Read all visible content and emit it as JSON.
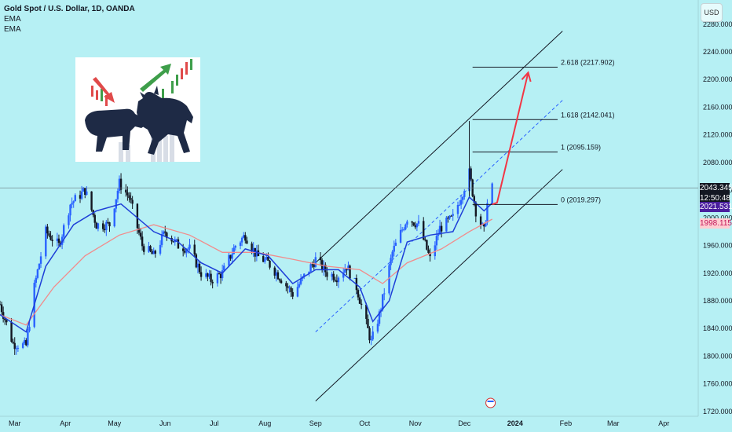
{
  "legend": {
    "title": "Gold Spot / U.S. Dollar, 1D, OANDA",
    "ind1": "EMA",
    "ind2": "EMA"
  },
  "currency_button": "USD",
  "badges": {
    "price": "2043.345",
    "countdown": "12:50:48",
    "ema_fast": "2021.531",
    "ema_slow": "1998.115"
  },
  "colors": {
    "background": "#b6f0f4",
    "up_candle": "#2962ff",
    "down_candle": "#131722",
    "ema_fast": "#1e3fd8",
    "ema_slow": "#f28b8b",
    "arrow": "#f23645",
    "price_badge": "#131722",
    "ema_fast_badge": "#4a1e9e",
    "ema_slow_badge": "#ffcdd2"
  },
  "chart_data": {
    "type": "candlestick",
    "instrument": "XAUUSD",
    "interval": "1D",
    "y_ticks": [
      1720,
      1760,
      1800,
      1840,
      1880,
      1920,
      1960,
      2000,
      2040,
      2080,
      2120,
      2160,
      2200,
      2240,
      2280
    ],
    "y_tick_labels": [
      "1720.000",
      "1760.000",
      "1800.000",
      "1840.000",
      "1880.000",
      "1920.000",
      "1960.000",
      "2000.000",
      "2040.000",
      "2080.000",
      "2120.000",
      "2160.000",
      "2200.000",
      "2240.000",
      "2280.000"
    ],
    "ylim": [
      1713,
      2315
    ],
    "x_range": [
      "2023-02-20",
      "2024-04-22"
    ],
    "x_ticks": [
      {
        "date": "2023-03-01",
        "label": "Mar"
      },
      {
        "date": "2023-04-01",
        "label": "Apr"
      },
      {
        "date": "2023-05-01",
        "label": "May"
      },
      {
        "date": "2023-06-01",
        "label": "Jun"
      },
      {
        "date": "2023-07-01",
        "label": "Jul"
      },
      {
        "date": "2023-08-01",
        "label": "Aug"
      },
      {
        "date": "2023-09-01",
        "label": "Sep"
      },
      {
        "date": "2023-10-01",
        "label": "Oct"
      },
      {
        "date": "2023-11-01",
        "label": "Nov"
      },
      {
        "date": "2023-12-01",
        "label": "Dec"
      },
      {
        "date": "2024-01-01",
        "label": "2024"
      },
      {
        "date": "2024-02-01",
        "label": "Feb"
      },
      {
        "date": "2024-03-01",
        "label": "Mar"
      },
      {
        "date": "2024-04-01",
        "label": "Apr"
      }
    ],
    "close_path": [
      [
        "2023-02-20",
        1875
      ],
      [
        "2023-02-28",
        1818
      ],
      [
        "2023-03-08",
        1815
      ],
      [
        "2023-03-13",
        1900
      ],
      [
        "2023-03-20",
        1980
      ],
      [
        "2023-03-28",
        1960
      ],
      [
        "2023-04-04",
        2020
      ],
      [
        "2023-04-13",
        2040
      ],
      [
        "2023-04-20",
        1990
      ],
      [
        "2023-04-28",
        1990
      ],
      [
        "2023-05-04",
        2050
      ],
      [
        "2023-05-10",
        2030
      ],
      [
        "2023-05-18",
        1960
      ],
      [
        "2023-05-25",
        1945
      ],
      [
        "2023-06-01",
        1980
      ],
      [
        "2023-06-09",
        1960
      ],
      [
        "2023-06-16",
        1955
      ],
      [
        "2023-06-23",
        1920
      ],
      [
        "2023-06-29",
        1910
      ],
      [
        "2023-07-06",
        1920
      ],
      [
        "2023-07-14",
        1960
      ],
      [
        "2023-07-20",
        1975
      ],
      [
        "2023-07-27",
        1945
      ],
      [
        "2023-08-03",
        1935
      ],
      [
        "2023-08-10",
        1915
      ],
      [
        "2023-08-18",
        1890
      ],
      [
        "2023-08-25",
        1915
      ],
      [
        "2023-09-01",
        1940
      ],
      [
        "2023-09-08",
        1920
      ],
      [
        "2023-09-14",
        1915
      ],
      [
        "2023-09-20",
        1930
      ],
      [
        "2023-09-26",
        1900
      ],
      [
        "2023-10-05",
        1820
      ],
      [
        "2023-10-10",
        1860
      ],
      [
        "2023-10-18",
        1950
      ],
      [
        "2023-10-27",
        2000
      ],
      [
        "2023-11-03",
        1990
      ],
      [
        "2023-11-10",
        1940
      ],
      [
        "2023-11-16",
        1985
      ],
      [
        "2023-11-24",
        2000
      ],
      [
        "2023-11-30",
        2038
      ],
      [
        "2023-12-04",
        2065
      ],
      [
        "2023-12-08",
        2010
      ],
      [
        "2023-12-13",
        1980
      ],
      [
        "2023-12-15",
        2020
      ],
      [
        "2023-12-18",
        2043
      ]
    ],
    "ema_fast_path": [
      [
        "2023-02-20",
        1860
      ],
      [
        "2023-03-08",
        1835
      ],
      [
        "2023-03-20",
        1930
      ],
      [
        "2023-04-06",
        1990
      ],
      [
        "2023-04-20",
        2010
      ],
      [
        "2023-05-05",
        2020
      ],
      [
        "2023-05-25",
        1980
      ],
      [
        "2023-06-09",
        1965
      ],
      [
        "2023-06-23",
        1935
      ],
      [
        "2023-07-06",
        1920
      ],
      [
        "2023-07-20",
        1955
      ],
      [
        "2023-08-03",
        1945
      ],
      [
        "2023-08-18",
        1905
      ],
      [
        "2023-09-01",
        1925
      ],
      [
        "2023-09-15",
        1925
      ],
      [
        "2023-09-28",
        1900
      ],
      [
        "2023-10-06",
        1850
      ],
      [
        "2023-10-16",
        1880
      ],
      [
        "2023-10-27",
        1965
      ],
      [
        "2023-11-10",
        1975
      ],
      [
        "2023-11-24",
        1980
      ],
      [
        "2023-12-04",
        2030
      ],
      [
        "2023-12-13",
        2010
      ],
      [
        "2023-12-18",
        2021.531
      ]
    ],
    "ema_slow_path": [
      [
        "2023-02-20",
        1860
      ],
      [
        "2023-03-08",
        1845
      ],
      [
        "2023-03-25",
        1900
      ],
      [
        "2023-04-13",
        1945
      ],
      [
        "2023-05-04",
        1975
      ],
      [
        "2023-05-25",
        1990
      ],
      [
        "2023-06-16",
        1975
      ],
      [
        "2023-07-06",
        1950
      ],
      [
        "2023-07-27",
        1950
      ],
      [
        "2023-08-18",
        1940
      ],
      [
        "2023-09-08",
        1930
      ],
      [
        "2023-09-28",
        1925
      ],
      [
        "2023-10-12",
        1905
      ],
      [
        "2023-10-27",
        1935
      ],
      [
        "2023-11-17",
        1955
      ],
      [
        "2023-12-04",
        1980
      ],
      [
        "2023-12-18",
        1998.115
      ]
    ],
    "fibonacci": [
      {
        "level": "0",
        "price": 2019.297,
        "label": "0 (2019.297)"
      },
      {
        "level": "1",
        "price": 2095.159,
        "label": "1 (2095.159)"
      },
      {
        "level": "1.618",
        "price": 2142.041,
        "label": "1.618 (2142.041)"
      },
      {
        "level": "2.618",
        "price": 2217.902,
        "label": "2.618 (2217.902)"
      }
    ],
    "fib_x_range": [
      "2023-12-06",
      "2024-01-27"
    ],
    "channel": {
      "upper": [
        [
          "2023-09-01",
          1935
        ],
        [
          "2024-01-30",
          2270
        ]
      ],
      "lower": [
        [
          "2023-09-01",
          1735
        ],
        [
          "2024-01-30",
          2070
        ]
      ],
      "mid": [
        [
          "2023-09-01",
          1835
        ],
        [
          "2024-01-30",
          2170
        ]
      ]
    },
    "spike_wick": {
      "date": "2023-12-04",
      "high": 2140,
      "low": 2030
    },
    "projection_arrow": [
      [
        "2023-12-18",
        2019.297
      ],
      [
        "2023-12-21",
        2022
      ],
      [
        "2024-01-09",
        2210
      ]
    ],
    "last_price": 2043.345
  }
}
